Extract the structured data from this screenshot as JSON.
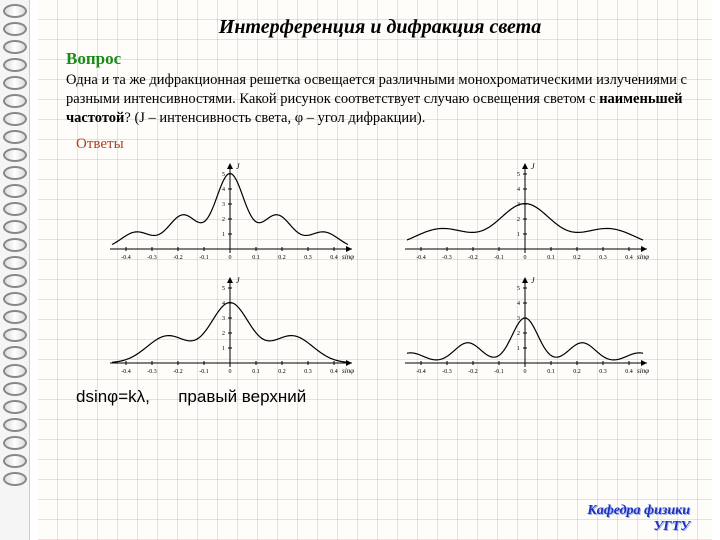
{
  "title": "Интерференция и дифракция света",
  "question_label": "Вопрос",
  "question_html": "Одна и та же дифракционная решетка освещается различными монохроматическими излучениями с разными интенсивностями. Какой рисунок соответствует случаю освещения светом с <b>наименьшей частотой</b>? (J – интенсивность света, φ – угол дифракции).",
  "answers_label": "Ответы",
  "formula": "dsinφ=kλ,",
  "answer_hint": "правый верхний",
  "footer_line1": "Кафедра физики",
  "footer_line2": "УГТУ",
  "axis": {
    "ylabel": "J",
    "xlabel": "sinφ",
    "ticks": [
      "-0.4",
      "-0.3",
      "-0.2",
      "-0.1",
      "0",
      "0.1",
      "0.2",
      "0.3",
      "0.4"
    ],
    "yticks": [
      "1",
      "2",
      "3",
      "4",
      "5"
    ]
  },
  "colors": {
    "stroke": "#000000",
    "bg": "#fffdfa"
  },
  "plots": [
    {
      "id": "p1",
      "amp": 5,
      "width": 0.055,
      "spacing": 0.18,
      "orders": 2
    },
    {
      "id": "p2",
      "amp": 3,
      "width": 0.1,
      "spacing": 0.32,
      "orders": 1
    },
    {
      "id": "p3",
      "amp": 4,
      "width": 0.075,
      "spacing": 0.24,
      "orders": 1
    },
    {
      "id": "p4",
      "amp": 3,
      "width": 0.05,
      "spacing": 0.22,
      "orders": 2
    }
  ]
}
